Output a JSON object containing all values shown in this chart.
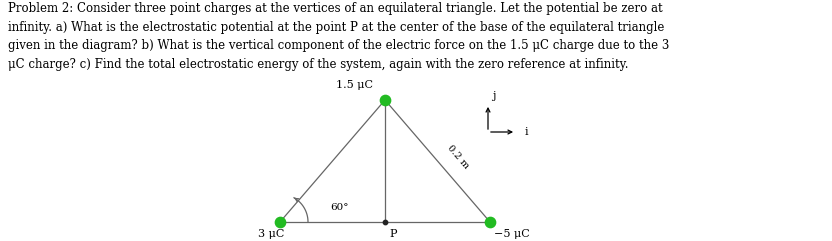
{
  "text_block": "Problem 2: Consider three point charges at the vertices of an equilateral triangle. Let the potential be zero at\ninfinity. a) What is the electrostatic potential at the point P at the center of the base of the equilateral triangle\ngiven in the diagram? b) What is the vertical component of the electric force on the 1.5 μC charge due to the 3\nμC charge? c) Find the total electrostatic energy of the system, again with the zero reference at infinity.",
  "charge_top_label": "1.5 μC",
  "charge_left_label": "3 μC",
  "charge_right_label": "−5 μC",
  "point_P_label": "P",
  "angle_label": "60°",
  "distance_label": "0.2 m",
  "axis_i_label": "i",
  "axis_j_label": "j",
  "charge_color": "#22bb22",
  "point_color": "#222222",
  "line_color": "#666666",
  "text_color": "#000000",
  "bg_color": "#ffffff",
  "font_size_text": 8.5,
  "font_size_labels": 8.0
}
